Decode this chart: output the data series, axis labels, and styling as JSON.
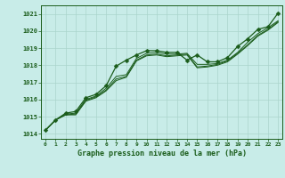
{
  "title": "Graphe pression niveau de la mer (hPa)",
  "bg_color": "#c8ece8",
  "grid_color": "#aad4cc",
  "line_color": "#1a5c1a",
  "x_values": [
    0,
    1,
    2,
    3,
    4,
    5,
    6,
    7,
    8,
    9,
    10,
    11,
    12,
    13,
    14,
    15,
    16,
    17,
    18,
    19,
    20,
    21,
    22,
    23
  ],
  "line_main": [
    1014.2,
    1014.8,
    1015.2,
    1015.3,
    1016.1,
    1016.3,
    1016.8,
    1017.95,
    1018.3,
    1018.6,
    1018.85,
    1018.85,
    1018.75,
    1018.75,
    1018.3,
    1018.6,
    1018.2,
    1018.2,
    1018.45,
    1019.1,
    1019.55,
    1020.1,
    1020.25,
    1021.05
  ],
  "line2": [
    1014.2,
    1014.8,
    1015.15,
    1015.2,
    1016.0,
    1016.2,
    1016.65,
    1017.35,
    1017.45,
    1018.4,
    1018.7,
    1018.75,
    1018.65,
    1018.65,
    1018.7,
    1018.05,
    1018.05,
    1018.1,
    1018.3,
    1018.75,
    1019.35,
    1019.85,
    1020.2,
    1020.6
  ],
  "line3": [
    1014.2,
    1014.8,
    1015.1,
    1015.15,
    1015.95,
    1016.15,
    1016.55,
    1017.2,
    1017.35,
    1018.3,
    1018.6,
    1018.65,
    1018.55,
    1018.6,
    1018.65,
    1017.9,
    1017.95,
    1018.05,
    1018.25,
    1018.7,
    1019.2,
    1019.75,
    1020.1,
    1020.55
  ],
  "line4": [
    1014.2,
    1014.8,
    1015.1,
    1015.1,
    1015.9,
    1016.1,
    1016.5,
    1017.1,
    1017.3,
    1018.25,
    1018.55,
    1018.6,
    1018.5,
    1018.55,
    1018.6,
    1017.85,
    1017.9,
    1018.0,
    1018.2,
    1018.65,
    1019.15,
    1019.7,
    1020.05,
    1020.5
  ],
  "ylim_min": 1013.7,
  "ylim_max": 1021.5,
  "xlim_min": -0.4,
  "xlim_max": 23.4,
  "yticks": [
    1014,
    1015,
    1016,
    1017,
    1018,
    1019,
    1020,
    1021
  ]
}
